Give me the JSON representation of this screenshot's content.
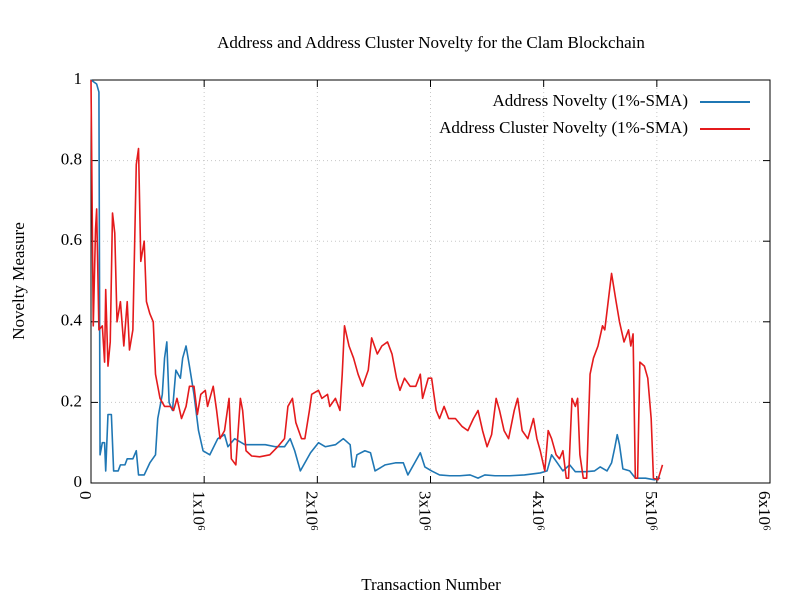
{
  "chart_data": {
    "type": "line",
    "title": "Address and Address Cluster Novelty for the Clam Blockchain",
    "x_label": "Transaction Number",
    "y_label": "Novelty Measure",
    "xlim": [
      0,
      6000000
    ],
    "ylim": [
      0,
      1
    ],
    "xticks": [
      0,
      {
        "value": 1000000,
        "label": "1x10⁶"
      },
      {
        "value": 2000000,
        "label": "2x10⁶"
      },
      {
        "value": 3000000,
        "label": "3x10⁶"
      },
      {
        "value": 4000000,
        "label": "4x10⁶"
      },
      {
        "value": 5000000,
        "label": "5x10⁶"
      },
      {
        "value": 6000000,
        "label": "6x10⁶"
      }
    ],
    "yticks": [
      0,
      0.2,
      0.4,
      0.6,
      0.8,
      1
    ],
    "grid": true,
    "legend": "top-right",
    "series": [
      {
        "name": "Address Novelty (1%-SMA)",
        "color": "#1f77b4",
        "x": [
          0,
          50000,
          70000,
          80000,
          100000,
          120000,
          130000,
          150000,
          180000,
          200000,
          240000,
          260000,
          300000,
          320000,
          370000,
          400000,
          420000,
          470000,
          520000,
          570000,
          590000,
          630000,
          650000,
          670000,
          690000,
          720000,
          750000,
          790000,
          810000,
          840000,
          870000,
          910000,
          950000,
          990000,
          1050000,
          1120000,
          1180000,
          1210000,
          1270000,
          1360000,
          1450000,
          1540000,
          1630000,
          1710000,
          1760000,
          1800000,
          1850000,
          1940000,
          2010000,
          2070000,
          2160000,
          2230000,
          2290000,
          2310000,
          2330000,
          2350000,
          2420000,
          2470000,
          2510000,
          2600000,
          2690000,
          2760000,
          2800000,
          2860000,
          2910000,
          2950000,
          3010000,
          3080000,
          3170000,
          3260000,
          3350000,
          3420000,
          3480000,
          3570000,
          3700000,
          3830000,
          3970000,
          4030000,
          4070000,
          4120000,
          4170000,
          4230000,
          4280000,
          4370000,
          4450000,
          4500000,
          4560000,
          4600000,
          4630000,
          4650000,
          4670000,
          4700000,
          4760000,
          4810000,
          4900000,
          4980000,
          5030000
        ],
        "values": [
          1,
          0.99,
          0.97,
          0.07,
          0.1,
          0.1,
          0.03,
          0.17,
          0.17,
          0.03,
          0.03,
          0.045,
          0.045,
          0.06,
          0.06,
          0.08,
          0.02,
          0.02,
          0.05,
          0.07,
          0.16,
          0.22,
          0.31,
          0.35,
          0.2,
          0.18,
          0.28,
          0.26,
          0.31,
          0.34,
          0.29,
          0.22,
          0.13,
          0.08,
          0.07,
          0.11,
          0.12,
          0.09,
          0.11,
          0.095,
          0.095,
          0.095,
          0.09,
          0.09,
          0.11,
          0.08,
          0.03,
          0.075,
          0.1,
          0.09,
          0.095,
          0.11,
          0.095,
          0.04,
          0.04,
          0.07,
          0.08,
          0.075,
          0.03,
          0.045,
          0.05,
          0.05,
          0.02,
          0.05,
          0.075,
          0.04,
          0.03,
          0.02,
          0.018,
          0.018,
          0.02,
          0.012,
          0.02,
          0.018,
          0.018,
          0.02,
          0.025,
          0.03,
          0.07,
          0.05,
          0.03,
          0.045,
          0.028,
          0.028,
          0.03,
          0.04,
          0.03,
          0.05,
          0.09,
          0.12,
          0.095,
          0.035,
          0.03,
          0.012,
          0.012,
          0.008,
          0.012
        ]
      },
      {
        "name": "Address Cluster Novelty (1%-SMA)",
        "color": "#e41a1c",
        "x": [
          0,
          20000,
          40000,
          50000,
          70000,
          100000,
          120000,
          130000,
          150000,
          170000,
          190000,
          210000,
          230000,
          260000,
          290000,
          320000,
          340000,
          370000,
          400000,
          420000,
          440000,
          470000,
          490000,
          520000,
          550000,
          570000,
          610000,
          650000,
          700000,
          730000,
          760000,
          800000,
          840000,
          870000,
          910000,
          940000,
          970000,
          1010000,
          1030000,
          1080000,
          1110000,
          1140000,
          1180000,
          1220000,
          1240000,
          1280000,
          1320000,
          1340000,
          1370000,
          1420000,
          1490000,
          1580000,
          1650000,
          1710000,
          1740000,
          1780000,
          1810000,
          1860000,
          1890000,
          1930000,
          1950000,
          2010000,
          2040000,
          2090000,
          2110000,
          2160000,
          2200000,
          2220000,
          2240000,
          2280000,
          2320000,
          2360000,
          2400000,
          2450000,
          2480000,
          2530000,
          2570000,
          2620000,
          2660000,
          2700000,
          2730000,
          2770000,
          2820000,
          2870000,
          2910000,
          2930000,
          2980000,
          3010000,
          3050000,
          3080000,
          3120000,
          3160000,
          3220000,
          3280000,
          3330000,
          3380000,
          3420000,
          3460000,
          3500000,
          3540000,
          3580000,
          3610000,
          3650000,
          3690000,
          3740000,
          3770000,
          3810000,
          3860000,
          3910000,
          3940000,
          3970000,
          4010000,
          4040000,
          4070000,
          4110000,
          4140000,
          4170000,
          4200000,
          4220000,
          4250000,
          4280000,
          4300000,
          4320000,
          4350000,
          4380000,
          4410000,
          4440000,
          4480000,
          4520000,
          4540000,
          4570000,
          4600000,
          4640000,
          4670000,
          4710000,
          4750000,
          4770000,
          4790000,
          4810000,
          4830000,
          4850000,
          4890000,
          4920000,
          4950000,
          4970000,
          5010000,
          5050000
        ],
        "values": [
          1,
          0.39,
          0.63,
          0.68,
          0.38,
          0.39,
          0.3,
          0.48,
          0.29,
          0.35,
          0.67,
          0.62,
          0.4,
          0.45,
          0.34,
          0.45,
          0.33,
          0.38,
          0.79,
          0.83,
          0.55,
          0.6,
          0.45,
          0.42,
          0.4,
          0.27,
          0.21,
          0.19,
          0.19,
          0.18,
          0.21,
          0.16,
          0.19,
          0.24,
          0.24,
          0.17,
          0.22,
          0.23,
          0.19,
          0.24,
          0.18,
          0.11,
          0.13,
          0.21,
          0.06,
          0.045,
          0.21,
          0.18,
          0.08,
          0.067,
          0.065,
          0.07,
          0.09,
          0.11,
          0.19,
          0.21,
          0.15,
          0.11,
          0.11,
          0.18,
          0.22,
          0.23,
          0.21,
          0.22,
          0.19,
          0.21,
          0.18,
          0.27,
          0.39,
          0.34,
          0.31,
          0.27,
          0.24,
          0.28,
          0.36,
          0.32,
          0.34,
          0.35,
          0.32,
          0.26,
          0.23,
          0.26,
          0.24,
          0.24,
          0.27,
          0.21,
          0.26,
          0.26,
          0.18,
          0.16,
          0.19,
          0.16,
          0.16,
          0.14,
          0.13,
          0.16,
          0.18,
          0.13,
          0.09,
          0.12,
          0.21,
          0.18,
          0.13,
          0.11,
          0.18,
          0.21,
          0.13,
          0.11,
          0.16,
          0.11,
          0.08,
          0.03,
          0.13,
          0.11,
          0.07,
          0.06,
          0.08,
          0.012,
          0.012,
          0.21,
          0.19,
          0.21,
          0.07,
          0.012,
          0.012,
          0.27,
          0.31,
          0.34,
          0.39,
          0.38,
          0.45,
          0.52,
          0.45,
          0.4,
          0.35,
          0.38,
          0.34,
          0.37,
          0.012,
          0.012,
          0.3,
          0.29,
          0.26,
          0.16,
          0.012,
          0.008,
          0.045
        ]
      }
    ]
  }
}
